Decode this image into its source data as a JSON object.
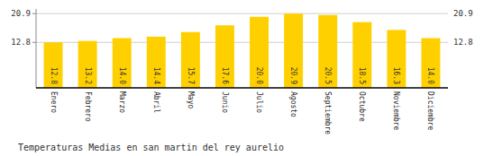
{
  "chart_data": {
    "type": "bar",
    "title": "Temperaturas Medias en san martin del rey aurelio",
    "categories": [
      "Enero",
      "Febrero",
      "Marzo",
      "Abril",
      "Mayo",
      "Junio",
      "Julio",
      "Agosto",
      "Septiembre",
      "Octubre",
      "Noviembre",
      "Diciembre"
    ],
    "values": [
      12.8,
      13.2,
      14.0,
      14.4,
      15.7,
      17.6,
      20.0,
      20.9,
      20.5,
      18.5,
      16.3,
      14.0
    ],
    "value_labels": [
      "12.8",
      "13.2",
      "14.0",
      "14.4",
      "15.7",
      "17.6",
      "20.0",
      "20.9",
      "20.5",
      "18.5",
      "16.3",
      "14.0"
    ],
    "data_labels": true,
    "color": "#FFD000",
    "ylim": [
      0,
      22.2
    ],
    "yticks": [
      12.8,
      20.9
    ],
    "grid": true
  }
}
